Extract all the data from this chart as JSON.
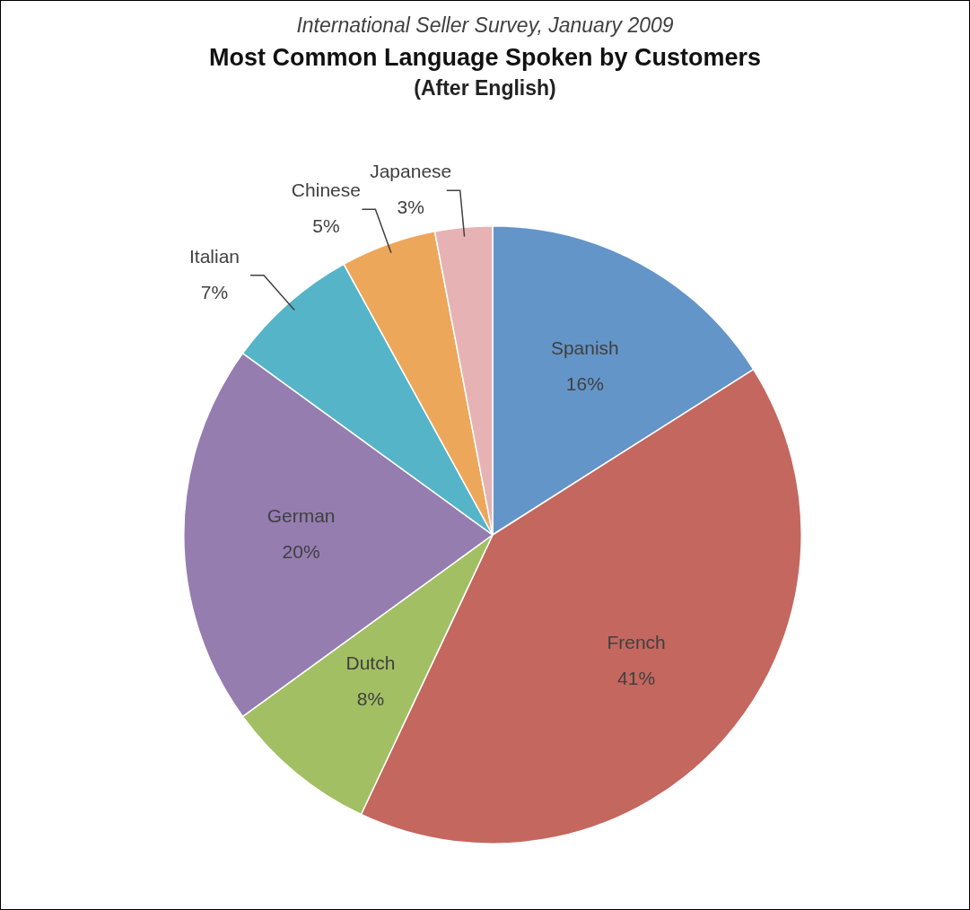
{
  "chart_data": {
    "type": "pie",
    "title": "Most Common Language Spoken by Customers",
    "subtitle": "(After English)",
    "annotations": [
      "International Seller Survey, January 2009"
    ],
    "categories": [
      "Spanish",
      "French",
      "Dutch",
      "German",
      "Italian",
      "Chinese",
      "Japanese"
    ],
    "values": [
      16,
      41,
      8,
      20,
      7,
      5,
      3
    ],
    "value_labels": [
      "16%",
      "41%",
      "8%",
      "20%",
      "7%",
      "5%",
      "3%"
    ],
    "colors": [
      "#6495c8",
      "#c4675f",
      "#a3bf63",
      "#957db0",
      "#55b4c8",
      "#eda75a",
      "#e6b2b4"
    ],
    "legend": false
  }
}
